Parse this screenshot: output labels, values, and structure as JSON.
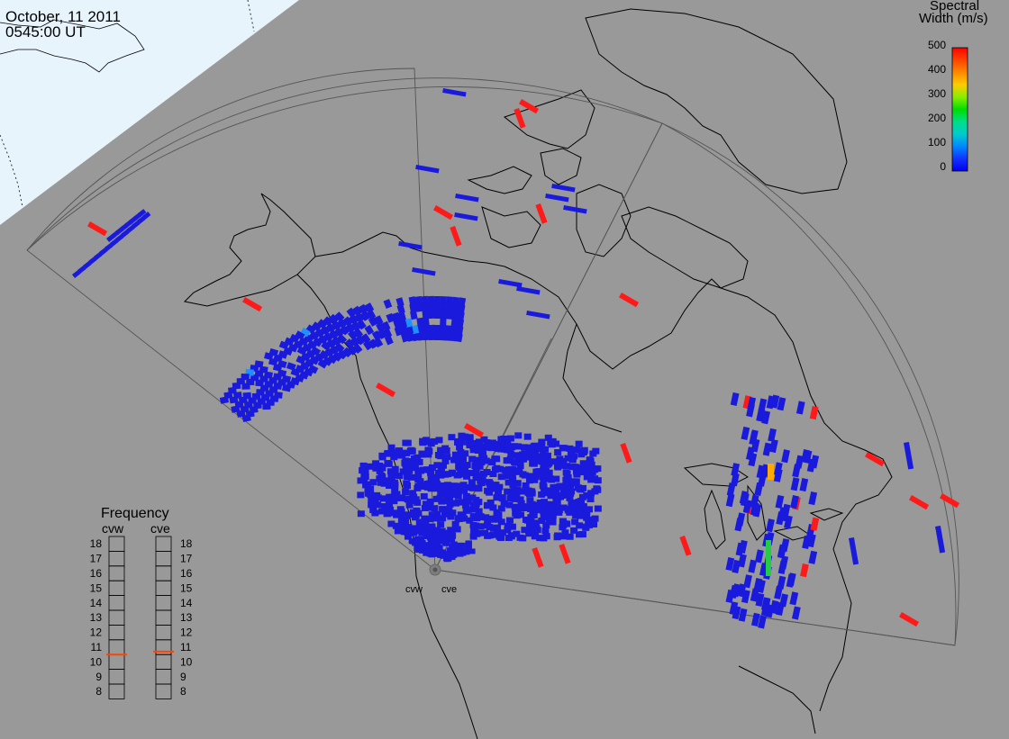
{
  "header": {
    "date": "October, 11 2011",
    "time": "0545:00 UT"
  },
  "colorbar": {
    "title_line1": "Spectral",
    "title_line2": "Width (m/s)",
    "ticks": [
      "500",
      "400",
      "300",
      "200",
      "100",
      "0"
    ],
    "gradient": [
      "#ff0000",
      "#ff4400",
      "#ff8800",
      "#ffcc00",
      "#88ee00",
      "#00dd00",
      "#00dd88",
      "#00cccc",
      "#0088ff",
      "#1133ff",
      "#0000ee"
    ]
  },
  "radars": [
    {
      "code": "cvw"
    },
    {
      "code": "cve"
    }
  ],
  "frequency_panel": {
    "title": "Frequency",
    "labels": [
      "cvw",
      "cve"
    ],
    "scale": [
      "18",
      "17",
      "16",
      "15",
      "14",
      "13",
      "12",
      "11",
      "10",
      "9",
      "8"
    ],
    "cvw_value_mhz": 10.5,
    "cve_value_mhz": 10.7,
    "marker_color": "#ff4400"
  },
  "colors": {
    "background": "#999999",
    "daylight": "#e8f4fc",
    "low_width": "#1a1adc",
    "high_width": "#ff1a1a"
  }
}
